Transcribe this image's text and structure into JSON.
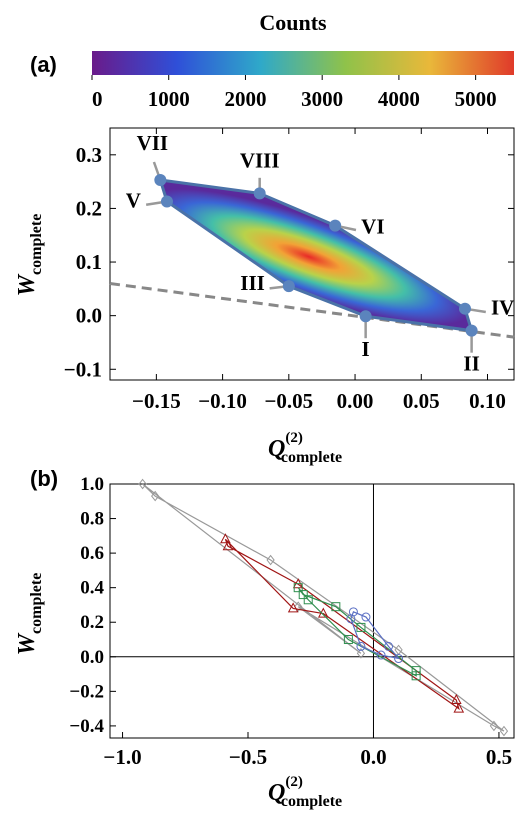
{
  "panel_labels": [
    "(a)",
    "(b)"
  ],
  "colorbar": {
    "title": "Counts",
    "ticks": [
      "0",
      "1000",
      "2000",
      "3000",
      "4000",
      "5000"
    ],
    "range": [
      0,
      5500
    ],
    "colors": [
      "#6a1b8a",
      "#2f4fd8",
      "#2fa9c9",
      "#8fc24a",
      "#e9b83a",
      "#e03a2a"
    ]
  },
  "chart_data": [
    {
      "type": "heatmap",
      "panel": "(a)",
      "xlabel": "Q",
      "xlabel_sup": "(2)",
      "xlabel_sub": "complete",
      "ylabel": "W",
      "ylabel_sub": "complete",
      "xlim": [
        -0.185,
        0.12
      ],
      "ylim": [
        -0.12,
        0.35
      ],
      "x_ticks": [
        "-0.15",
        "-0.10",
        "-0.05",
        "0.00",
        "0.05",
        "0.10"
      ],
      "y_ticks": [
        "-0.1",
        "0.0",
        "0.1",
        "0.2",
        "0.3"
      ],
      "grid": false,
      "density_center": [
        -0.035,
        0.11
      ],
      "density_peak": 5500,
      "hull_vertices": [
        {
          "label": "VII",
          "x": -0.147,
          "y": 0.253
        },
        {
          "label": "VIII",
          "x": -0.072,
          "y": 0.228
        },
        {
          "label": "VI",
          "x": -0.015,
          "y": 0.168
        },
        {
          "label": "IV",
          "x": 0.083,
          "y": 0.013
        },
        {
          "label": "II",
          "x": 0.088,
          "y": -0.028
        },
        {
          "label": "I",
          "x": 0.008,
          "y": -0.001
        },
        {
          "label": "III",
          "x": -0.05,
          "y": 0.055
        },
        {
          "label": "V",
          "x": -0.142,
          "y": 0.213
        }
      ],
      "dashed_line": {
        "x": [
          -0.185,
          0.12
        ],
        "y": [
          0.06,
          -0.04
        ]
      }
    },
    {
      "type": "line",
      "panel": "(b)",
      "xlabel": "Q",
      "xlabel_sup": "(2)",
      "xlabel_sub": "complete",
      "ylabel": "W",
      "ylabel_sub": "complete",
      "xlim": [
        -1.05,
        0.56
      ],
      "ylim": [
        -0.47,
        1.0
      ],
      "x_ticks": [
        "-1.0",
        "-0.5",
        "0.0",
        "0.5"
      ],
      "y_ticks": [
        "-0.4",
        "-0.2",
        "0.0",
        "0.2",
        "0.4",
        "0.6",
        "0.8",
        "1.0"
      ],
      "series": [
        {
          "marker": "diamond",
          "color": "#999999",
          "points": [
            [
              -0.92,
              1.0
            ],
            [
              -0.87,
              0.93
            ],
            [
              -0.41,
              0.56
            ],
            [
              0.1,
              0.04
            ],
            [
              0.52,
              -0.43
            ],
            [
              0.48,
              -0.4
            ],
            [
              -0.3,
              0.29
            ],
            [
              -0.05,
              0.02
            ]
          ]
        },
        {
          "marker": "triangle",
          "color": "#a01515",
          "points": [
            [
              -0.59,
              0.68
            ],
            [
              -0.58,
              0.64
            ],
            [
              -0.3,
              0.42
            ],
            [
              0.33,
              -0.25
            ],
            [
              0.34,
              -0.3
            ],
            [
              -0.2,
              0.25
            ],
            [
              -0.32,
              0.28
            ]
          ]
        },
        {
          "marker": "square",
          "color": "#2f8f4f",
          "points": [
            [
              -0.3,
              0.4
            ],
            [
              -0.28,
              0.36
            ],
            [
              -0.15,
              0.29
            ],
            [
              -0.05,
              0.17
            ],
            [
              0.17,
              -0.08
            ],
            [
              0.17,
              -0.11
            ],
            [
              -0.1,
              0.1
            ],
            [
              -0.26,
              0.33
            ]
          ]
        },
        {
          "marker": "circle",
          "color": "#5a6fc4",
          "points": [
            [
              -0.08,
              0.26
            ],
            [
              -0.03,
              0.23
            ],
            [
              0.06,
              0.06
            ],
            [
              0.1,
              -0.01
            ],
            [
              0.03,
              0.01
            ],
            [
              -0.05,
              0.06
            ],
            [
              -0.09,
              0.22
            ]
          ]
        }
      ]
    }
  ]
}
